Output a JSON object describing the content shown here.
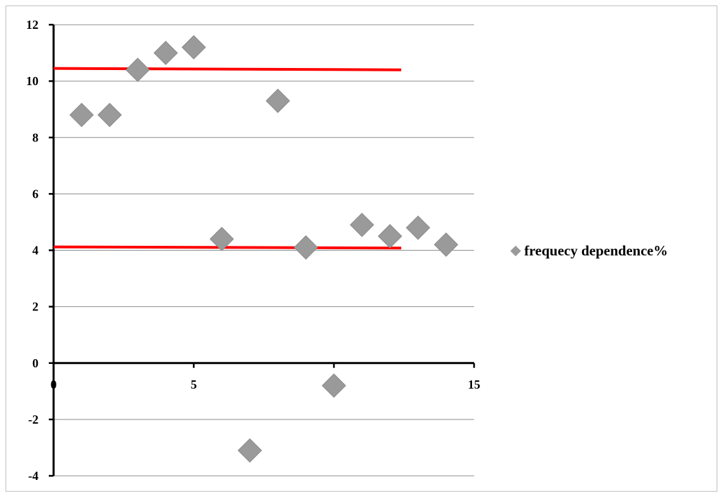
{
  "chart_data": {
    "type": "scatter",
    "title": "",
    "xlabel": "",
    "ylabel": "",
    "xlim": [
      0,
      15
    ],
    "ylim": [
      -4,
      12
    ],
    "x_ticks": [
      0,
      5,
      10,
      15
    ],
    "x_tick_labels": [
      "0",
      "5",
      "10",
      "15"
    ],
    "y_ticks": [
      -4,
      -2,
      0,
      2,
      4,
      6,
      8,
      10,
      12
    ],
    "y_tick_labels": [
      "-4",
      "-2",
      "0",
      "2",
      "4",
      "6",
      "8",
      "10",
      "12"
    ],
    "grid": "horizontal",
    "legend_position": "right",
    "series": [
      {
        "name": "frequecy dependence%",
        "marker": "diamond",
        "color": "#9a9a9a",
        "x": [
          1,
          2,
          3,
          4,
          5,
          6,
          7,
          8,
          9,
          10,
          11,
          12,
          13,
          14
        ],
        "y": [
          8.8,
          8.8,
          10.4,
          11.0,
          11.2,
          4.4,
          -3.1,
          9.3,
          4.1,
          -0.8,
          4.9,
          4.5,
          4.8,
          4.2
        ]
      }
    ],
    "annotation_lines": [
      {
        "color": "#ff0000",
        "x": [
          0,
          12.4
        ],
        "y": [
          10.45,
          10.4
        ]
      },
      {
        "color": "#ff0000",
        "x": [
          0,
          12.4
        ],
        "y": [
          4.12,
          4.08
        ]
      }
    ]
  }
}
